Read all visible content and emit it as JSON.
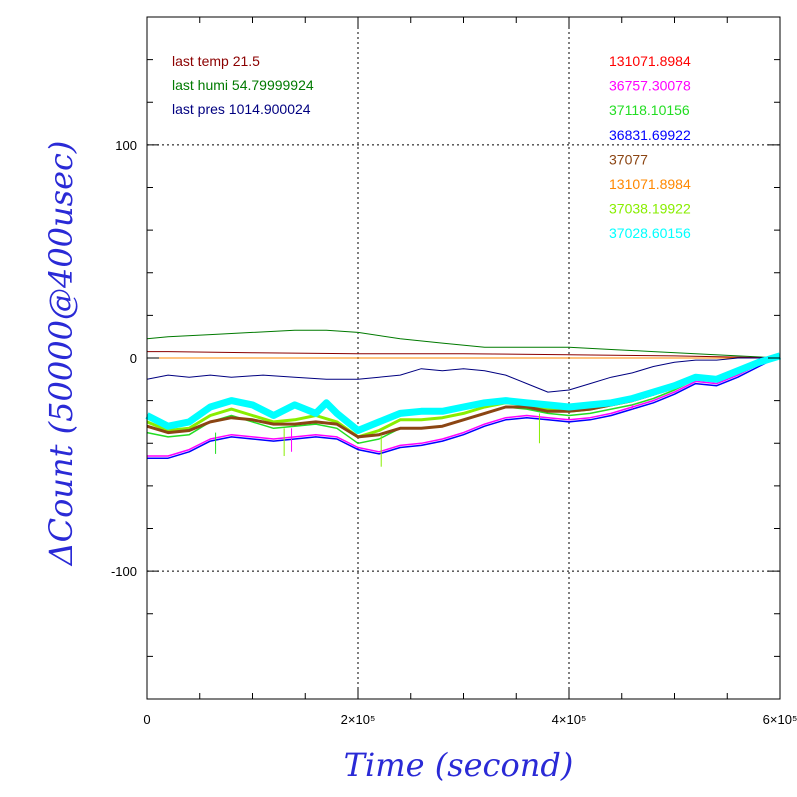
{
  "chart_data": {
    "type": "line",
    "xlabel": "Time (second)",
    "ylabel": "ΔCount (50000@400usec)",
    "xlim": [
      0,
      600000
    ],
    "ylim": [
      -160,
      160
    ],
    "x_ticks": [
      {
        "value": 0,
        "label": "0"
      },
      {
        "value": 200000,
        "label": "2×10⁵"
      },
      {
        "value": 400000,
        "label": "4×10⁵"
      },
      {
        "value": 600000,
        "label": "6×10⁵"
      }
    ],
    "y_ticks": [
      {
        "value": 100,
        "label": "100"
      },
      {
        "value": 0,
        "label": "0"
      },
      {
        "value": -100,
        "label": "-100"
      }
    ],
    "grid": true,
    "grid_x": [
      200000,
      400000
    ],
    "grid_y": [
      100,
      -100
    ],
    "legend_placement": "top-left",
    "annotations_left": [
      {
        "text": "last temp 21.5",
        "color": "#8b0000"
      },
      {
        "text": "last humi 54.79999924",
        "color": "#007a00"
      },
      {
        "text": "last pres 1014.900024",
        "color": "#000080"
      }
    ],
    "annotations_right": [
      {
        "text": "131071.8984",
        "color": "#ff0000"
      },
      {
        "text": "36757.30078",
        "color": "#ff00ff"
      },
      {
        "text": "37118.10156",
        "color": "#22dd22"
      },
      {
        "text": "36831.69922",
        "color": "#0000ff"
      },
      {
        "text": "37077",
        "color": "#8b4513"
      },
      {
        "text": "131071.8984",
        "color": "#ff8800"
      },
      {
        "text": "37038.19922",
        "color": "#88ee00"
      },
      {
        "text": "37028.60156",
        "color": "#00ffff"
      }
    ],
    "series": [
      {
        "color": "#007a00",
        "width": 1,
        "x": [
          0,
          20000,
          60000,
          100000,
          140000,
          170000,
          200000,
          240000,
          280000,
          320000,
          360000,
          400000,
          440000,
          480000,
          520000,
          560000,
          600000
        ],
        "y": [
          9,
          10,
          11,
          12,
          13,
          13,
          12,
          9,
          7,
          5,
          5,
          5,
          4,
          3,
          2,
          1,
          0
        ]
      },
      {
        "color": "#8b0000",
        "width": 1,
        "x": [
          0,
          20000,
          100000,
          200000,
          300000,
          400000,
          500000,
          600000
        ],
        "y": [
          3,
          3,
          2.5,
          2,
          2,
          1.5,
          1,
          0
        ]
      },
      {
        "color": "#ff8800",
        "width": 1,
        "x": [
          0,
          600000
        ],
        "y": [
          0,
          0
        ]
      },
      {
        "color": "#000080",
        "width": 1,
        "x": [
          0,
          20000,
          40000,
          60000,
          80000,
          110000,
          140000,
          170000,
          200000,
          220000,
          240000,
          260000,
          280000,
          300000,
          320000,
          340000,
          360000,
          380000,
          400000,
          420000,
          440000,
          460000,
          480000,
          500000,
          520000,
          540000,
          560000,
          580000,
          600000
        ],
        "y": [
          -10,
          -8,
          -9,
          -8,
          -9,
          -8,
          -9,
          -10,
          -10,
          -9,
          -8,
          -5,
          -6,
          -5,
          -6,
          -8,
          -12,
          -16,
          -15,
          -12,
          -9,
          -7,
          -4,
          -2,
          -1,
          -1,
          0,
          0,
          1
        ]
      },
      {
        "color": "#ff00ff",
        "width": 1.5,
        "x": [
          0,
          20000,
          40000,
          60000,
          80000,
          100000,
          120000,
          140000,
          160000,
          180000,
          200000,
          220000,
          240000,
          260000,
          280000,
          300000,
          320000,
          340000,
          360000,
          380000,
          400000,
          420000,
          440000,
          460000,
          480000,
          500000,
          520000,
          540000,
          560000,
          580000,
          600000
        ],
        "y": [
          -46,
          -46,
          -43,
          -38,
          -36,
          -37,
          -38,
          -37,
          -36,
          -37,
          -42,
          -44,
          -41,
          -40,
          -38,
          -35,
          -31,
          -28,
          -27,
          -28,
          -29,
          -28,
          -26,
          -23,
          -20,
          -16,
          -11,
          -12,
          -8,
          -3,
          1
        ]
      },
      {
        "color": "#0000ff",
        "width": 1.5,
        "x": [
          0,
          20000,
          40000,
          60000,
          80000,
          100000,
          120000,
          140000,
          160000,
          180000,
          200000,
          220000,
          240000,
          260000,
          280000,
          300000,
          320000,
          340000,
          360000,
          380000,
          400000,
          420000,
          440000,
          460000,
          480000,
          500000,
          520000,
          540000,
          560000,
          580000,
          600000
        ],
        "y": [
          -47,
          -47,
          -44,
          -39,
          -37,
          -38,
          -39,
          -38,
          -37,
          -38,
          -43,
          -45,
          -42,
          -41,
          -39,
          -36,
          -32,
          -29,
          -28,
          -29,
          -30,
          -29,
          -27,
          -24,
          -21,
          -17,
          -12,
          -13,
          -9,
          -4,
          1
        ]
      },
      {
        "color": "#22dd22",
        "width": 1.5,
        "x": [
          0,
          20000,
          40000,
          60000,
          80000,
          100000,
          120000,
          140000,
          160000,
          180000,
          200000,
          220000,
          240000,
          260000,
          280000,
          300000,
          320000,
          340000,
          360000,
          380000,
          400000,
          420000,
          440000,
          460000,
          480000,
          500000,
          520000,
          540000,
          560000,
          580000,
          600000
        ],
        "y": [
          -35,
          -37,
          -36,
          -30,
          -27,
          -30,
          -33,
          -32,
          -31,
          -33,
          -40,
          -38,
          -33,
          -33,
          -32,
          -29,
          -26,
          -23,
          -24,
          -26,
          -27,
          -26,
          -24,
          -22,
          -19,
          -15,
          -10,
          -11,
          -7,
          -3,
          1
        ]
      },
      {
        "color": "#88ee00",
        "width": 3,
        "x": [
          0,
          20000,
          40000,
          60000,
          80000,
          100000,
          120000,
          140000,
          160000,
          180000,
          200000,
          220000,
          240000,
          260000,
          280000,
          300000,
          320000,
          340000,
          360000,
          380000,
          400000,
          420000,
          440000,
          460000,
          480000,
          500000,
          520000,
          540000,
          560000,
          580000,
          600000
        ],
        "y": [
          -30,
          -34,
          -33,
          -27,
          -24,
          -27,
          -30,
          -29,
          -27,
          -30,
          -37,
          -34,
          -29,
          -29,
          -28,
          -26,
          -23,
          -21,
          -22,
          -24,
          -25,
          -24,
          -22,
          -20,
          -17,
          -14,
          -9,
          -10,
          -6,
          -2,
          1
        ]
      },
      {
        "color": "#8b4513",
        "width": 3,
        "x": [
          0,
          20000,
          40000,
          60000,
          80000,
          100000,
          120000,
          140000,
          160000,
          180000,
          200000,
          220000,
          240000,
          260000,
          280000,
          300000,
          320000,
          340000,
          360000,
          380000,
          400000,
          420000,
          440000,
          460000,
          480000,
          500000,
          520000,
          540000,
          560000,
          580000,
          600000
        ],
        "y": [
          -32,
          -35,
          -34,
          -30,
          -28,
          -29,
          -31,
          -31,
          -30,
          -31,
          -37,
          -36,
          -33,
          -33,
          -32,
          -29,
          -26,
          -23,
          -23,
          -25,
          -25,
          -24,
          -22,
          -20,
          -17,
          -13,
          -9,
          -10,
          -6,
          -2,
          1
        ]
      },
      {
        "color": "#00ffff",
        "width": 7,
        "x": [
          0,
          20000,
          40000,
          60000,
          80000,
          100000,
          120000,
          140000,
          160000,
          170000,
          180000,
          200000,
          220000,
          240000,
          260000,
          280000,
          300000,
          320000,
          340000,
          360000,
          380000,
          400000,
          420000,
          440000,
          460000,
          480000,
          500000,
          520000,
          540000,
          560000,
          580000,
          600000
        ],
        "y": [
          -27,
          -32,
          -30,
          -23,
          -20,
          -22,
          -27,
          -22,
          -26,
          -21,
          -26,
          -34,
          -30,
          -26,
          -25,
          -25,
          -23,
          -21,
          -20,
          -21,
          -22,
          -23,
          -22,
          -21,
          -19,
          -16,
          -13,
          -9,
          -10,
          -6,
          -2,
          1
        ]
      }
    ],
    "spikes": [
      {
        "x": 65000,
        "y0": -35,
        "y1": -45,
        "color": "#22dd22"
      },
      {
        "x": 130000,
        "y0": -33,
        "y1": -46,
        "color": "#88ee00"
      },
      {
        "x": 137000,
        "y0": -33,
        "y1": -44,
        "color": "#ff00ff"
      },
      {
        "x": 222000,
        "y0": -36,
        "y1": -51,
        "color": "#88ee00"
      },
      {
        "x": 372000,
        "y0": -26,
        "y1": -40,
        "color": "#88ee00"
      },
      {
        "x": 460000,
        "y0": -22,
        "y1": -24,
        "color": "#ff00ff"
      }
    ]
  }
}
